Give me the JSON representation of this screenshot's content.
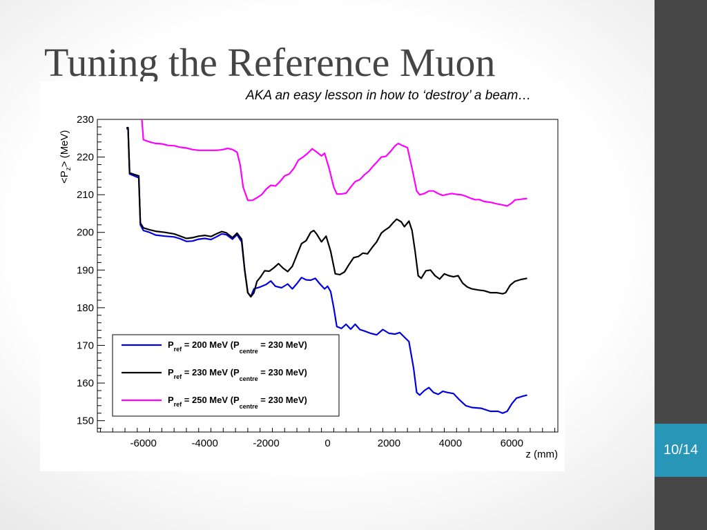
{
  "slide": {
    "title": "Tuning the Reference Muon",
    "subtitle": "AKA an easy lesson in how to ‘destroy’ a beam…",
    "page_number": "10/14"
  },
  "colors": {
    "sidebar": "#474747",
    "badge": "#2796b7",
    "title": "#454545"
  },
  "chart_data": {
    "type": "line",
    "xlabel": "z (mm)",
    "ylabel": "<P_z> (MeV)",
    "xlim": [
      -7500,
      7500
    ],
    "ylim": [
      147,
      230
    ],
    "x_ticks": [
      -6000,
      -4000,
      -2000,
      0,
      2000,
      4000,
      6000
    ],
    "y_ticks": [
      150,
      160,
      170,
      180,
      190,
      200,
      210,
      220,
      230
    ],
    "legend_position": "bottom-left",
    "series": [
      {
        "color": "#0000dd",
        "legend": {
          "base": "P",
          "sub1": "ref",
          "mid": " = 200 MeV (P",
          "sub2": "centre",
          "end": " = 230 MeV)"
        },
        "points": [
          [
            -6550,
            227.5
          ],
          [
            -6500,
            227.5
          ],
          [
            -6450,
            215.5
          ],
          [
            -6150,
            214.5
          ],
          [
            -6100,
            202
          ],
          [
            -6000,
            200.5
          ],
          [
            -5800,
            200
          ],
          [
            -5600,
            199.3
          ],
          [
            -5300,
            199
          ],
          [
            -5000,
            198.8
          ],
          [
            -4800,
            198.3
          ],
          [
            -4600,
            197.6
          ],
          [
            -4400,
            197.7
          ],
          [
            -4200,
            198.2
          ],
          [
            -4000,
            198.4
          ],
          [
            -3800,
            198.1
          ],
          [
            -3600,
            198.9
          ],
          [
            -3450,
            199.6
          ],
          [
            -3300,
            199.4
          ],
          [
            -3100,
            198.2
          ],
          [
            -2950,
            199.4
          ],
          [
            -2800,
            197.5
          ],
          [
            -2700,
            190
          ],
          [
            -2600,
            184
          ],
          [
            -2500,
            183
          ],
          [
            -2400,
            185
          ],
          [
            -2200,
            185.5
          ],
          [
            -2000,
            186.2
          ],
          [
            -1850,
            187.1
          ],
          [
            -1700,
            185.7
          ],
          [
            -1500,
            185.3
          ],
          [
            -1300,
            186.3
          ],
          [
            -1150,
            185
          ],
          [
            -1000,
            186.4
          ],
          [
            -850,
            188
          ],
          [
            -700,
            187.4
          ],
          [
            -550,
            187.3
          ],
          [
            -400,
            187.8
          ],
          [
            -250,
            186.3
          ],
          [
            -100,
            185
          ],
          [
            0,
            185.7
          ],
          [
            100,
            184.3
          ],
          [
            200,
            180
          ],
          [
            300,
            175
          ],
          [
            450,
            174.5
          ],
          [
            600,
            175.6
          ],
          [
            750,
            174.3
          ],
          [
            900,
            175.6
          ],
          [
            1050,
            174.2
          ],
          [
            1200,
            173.8
          ],
          [
            1400,
            173.2
          ],
          [
            1600,
            172.8
          ],
          [
            1800,
            174.2
          ],
          [
            2000,
            173.2
          ],
          [
            2200,
            173
          ],
          [
            2350,
            173.4
          ],
          [
            2500,
            172.2
          ],
          [
            2650,
            171
          ],
          [
            2800,
            164
          ],
          [
            2900,
            157.5
          ],
          [
            3000,
            156.8
          ],
          [
            3150,
            158
          ],
          [
            3300,
            158.8
          ],
          [
            3450,
            157.5
          ],
          [
            3600,
            157
          ],
          [
            3750,
            157.8
          ],
          [
            3900,
            157.5
          ],
          [
            4100,
            157.2
          ],
          [
            4300,
            155.5
          ],
          [
            4500,
            154
          ],
          [
            4700,
            153.5
          ],
          [
            5000,
            153.3
          ],
          [
            5300,
            152.5
          ],
          [
            5550,
            152.5
          ],
          [
            5700,
            152
          ],
          [
            5850,
            152.5
          ],
          [
            6000,
            154.5
          ],
          [
            6150,
            156
          ],
          [
            6350,
            156.5
          ],
          [
            6500,
            156.8
          ]
        ]
      },
      {
        "color": "#000000",
        "legend": {
          "base": "P",
          "sub1": "ref",
          "mid": " = 230 MeV (P",
          "sub2": "centre",
          "end": " = 230 MeV)"
        },
        "points": [
          [
            -6550,
            227.8
          ],
          [
            -6500,
            227.8
          ],
          [
            -6450,
            215.8
          ],
          [
            -6150,
            215
          ],
          [
            -6100,
            202.5
          ],
          [
            -6000,
            201.2
          ],
          [
            -5800,
            200.7
          ],
          [
            -5600,
            200.3
          ],
          [
            -5300,
            200
          ],
          [
            -5000,
            199.6
          ],
          [
            -4800,
            199
          ],
          [
            -4600,
            198.4
          ],
          [
            -4400,
            198.6
          ],
          [
            -4200,
            199
          ],
          [
            -4000,
            199.2
          ],
          [
            -3800,
            198.9
          ],
          [
            -3600,
            199.7
          ],
          [
            -3450,
            200.2
          ],
          [
            -3300,
            199.9
          ],
          [
            -3100,
            198.6
          ],
          [
            -2950,
            199.8
          ],
          [
            -2800,
            198.2
          ],
          [
            -2700,
            190
          ],
          [
            -2600,
            184
          ],
          [
            -2500,
            182.9
          ],
          [
            -2400,
            184
          ],
          [
            -2300,
            187
          ],
          [
            -2200,
            188
          ],
          [
            -2050,
            189.8
          ],
          [
            -1900,
            189.7
          ],
          [
            -1750,
            190.6
          ],
          [
            -1600,
            191.7
          ],
          [
            -1450,
            190.5
          ],
          [
            -1300,
            189.6
          ],
          [
            -1150,
            191
          ],
          [
            -1000,
            194
          ],
          [
            -850,
            197
          ],
          [
            -700,
            197.8
          ],
          [
            -550,
            200
          ],
          [
            -450,
            200.5
          ],
          [
            -350,
            199.5
          ],
          [
            -200,
            197.5
          ],
          [
            -50,
            199
          ],
          [
            100,
            195
          ],
          [
            250,
            189
          ],
          [
            400,
            188.8
          ],
          [
            550,
            189.5
          ],
          [
            700,
            191.5
          ],
          [
            850,
            193.3
          ],
          [
            1000,
            193.6
          ],
          [
            1150,
            194.5
          ],
          [
            1300,
            194.3
          ],
          [
            1450,
            196
          ],
          [
            1600,
            197.5
          ],
          [
            1750,
            199.8
          ],
          [
            1850,
            200.5
          ],
          [
            2000,
            201.3
          ],
          [
            2150,
            202.7
          ],
          [
            2250,
            203.5
          ],
          [
            2400,
            202.8
          ],
          [
            2500,
            201.5
          ],
          [
            2650,
            203
          ],
          [
            2750,
            200.5
          ],
          [
            2850,
            195
          ],
          [
            2950,
            188.5
          ],
          [
            3050,
            187.8
          ],
          [
            3200,
            189.8
          ],
          [
            3350,
            190
          ],
          [
            3500,
            188.5
          ],
          [
            3650,
            187.6
          ],
          [
            3800,
            189
          ],
          [
            3950,
            188.5
          ],
          [
            4100,
            188.2
          ],
          [
            4250,
            188.5
          ],
          [
            4400,
            186.5
          ],
          [
            4550,
            185.5
          ],
          [
            4700,
            185
          ],
          [
            4900,
            184.7
          ],
          [
            5100,
            184.5
          ],
          [
            5300,
            184
          ],
          [
            5500,
            184
          ],
          [
            5700,
            183.7
          ],
          [
            5800,
            184
          ],
          [
            5950,
            186
          ],
          [
            6100,
            187
          ],
          [
            6300,
            187.5
          ],
          [
            6500,
            187.8
          ]
        ]
      },
      {
        "color": "#ff00ff",
        "legend": {
          "base": "P",
          "sub1": "ref",
          "mid": " = 250 MeV (P",
          "sub2": "centre",
          "end": " = 230 MeV)"
        },
        "points": [
          [
            -6050,
            230
          ],
          [
            -6000,
            224.6
          ],
          [
            -5800,
            224
          ],
          [
            -5600,
            223.6
          ],
          [
            -5400,
            223.5
          ],
          [
            -5200,
            223.1
          ],
          [
            -5000,
            223
          ],
          [
            -4800,
            222.6
          ],
          [
            -4600,
            222.4
          ],
          [
            -4400,
            222
          ],
          [
            -4200,
            221.8
          ],
          [
            -3900,
            221.8
          ],
          [
            -3600,
            221.8
          ],
          [
            -3400,
            222
          ],
          [
            -3250,
            222.3
          ],
          [
            -3100,
            222
          ],
          [
            -2950,
            221.3
          ],
          [
            -2850,
            218
          ],
          [
            -2750,
            212
          ],
          [
            -2600,
            208.5
          ],
          [
            -2450,
            208.5
          ],
          [
            -2300,
            209.2
          ],
          [
            -2150,
            210
          ],
          [
            -2000,
            211.5
          ],
          [
            -1850,
            212.5
          ],
          [
            -1700,
            212.3
          ],
          [
            -1550,
            213.5
          ],
          [
            -1400,
            215
          ],
          [
            -1250,
            215.5
          ],
          [
            -1100,
            217
          ],
          [
            -950,
            219.2
          ],
          [
            -800,
            220
          ],
          [
            -650,
            221
          ],
          [
            -500,
            222.2
          ],
          [
            -350,
            221.3
          ],
          [
            -200,
            220.3
          ],
          [
            -100,
            221
          ],
          [
            50,
            217
          ],
          [
            200,
            212
          ],
          [
            300,
            210.2
          ],
          [
            450,
            210.2
          ],
          [
            600,
            210.4
          ],
          [
            750,
            212
          ],
          [
            900,
            213.5
          ],
          [
            1050,
            214
          ],
          [
            1200,
            215.3
          ],
          [
            1350,
            216.3
          ],
          [
            1450,
            217.3
          ],
          [
            1600,
            218.6
          ],
          [
            1750,
            220
          ],
          [
            1900,
            220.2
          ],
          [
            2050,
            221.5
          ],
          [
            2200,
            223
          ],
          [
            2300,
            223.6
          ],
          [
            2450,
            223
          ],
          [
            2600,
            222.5
          ],
          [
            2750,
            217
          ],
          [
            2900,
            211
          ],
          [
            3000,
            210
          ],
          [
            3150,
            210.3
          ],
          [
            3300,
            211
          ],
          [
            3450,
            211
          ],
          [
            3600,
            210.3
          ],
          [
            3750,
            209.8
          ],
          [
            3900,
            210.1
          ],
          [
            4050,
            210.3
          ],
          [
            4200,
            210.1
          ],
          [
            4350,
            210
          ],
          [
            4500,
            209.6
          ],
          [
            4650,
            209.1
          ],
          [
            4800,
            208.7
          ],
          [
            4950,
            208.7
          ],
          [
            5100,
            208.2
          ],
          [
            5300,
            208
          ],
          [
            5500,
            207.6
          ],
          [
            5700,
            207.3
          ],
          [
            5850,
            207
          ],
          [
            6000,
            207.8
          ],
          [
            6100,
            208.6
          ],
          [
            6300,
            208.8
          ],
          [
            6500,
            209
          ]
        ]
      }
    ]
  }
}
